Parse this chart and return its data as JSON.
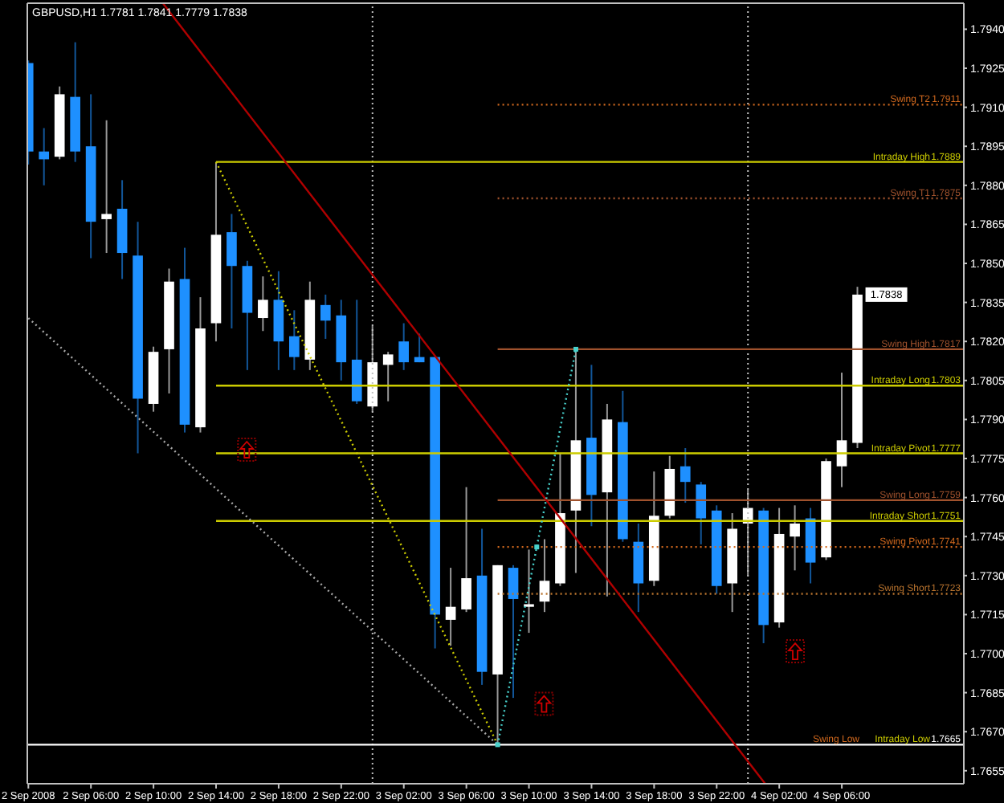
{
  "chart_data": {
    "type": "candlestick",
    "title": "GBPUSD,H1 1.7781 1.7841 1.7779 1.7838",
    "x": [
      "2008-09-02T02:00",
      "2008-09-02T03:00",
      "2008-09-02T04:00",
      "2008-09-02T05:00",
      "2008-09-02T06:00",
      "2008-09-02T07:00",
      "2008-09-02T08:00",
      "2008-09-02T09:00",
      "2008-09-02T10:00",
      "2008-09-02T11:00",
      "2008-09-02T12:00",
      "2008-09-02T13:00",
      "2008-09-02T14:00",
      "2008-09-02T15:00",
      "2008-09-02T16:00",
      "2008-09-02T17:00",
      "2008-09-02T18:00",
      "2008-09-02T19:00",
      "2008-09-02T20:00",
      "2008-09-02T21:00",
      "2008-09-02T22:00",
      "2008-09-02T23:00",
      "2008-09-03T00:00",
      "2008-09-03T01:00",
      "2008-09-03T02:00",
      "2008-09-03T03:00",
      "2008-09-03T04:00",
      "2008-09-03T05:00",
      "2008-09-03T06:00",
      "2008-09-03T07:00",
      "2008-09-03T08:00",
      "2008-09-03T09:00",
      "2008-09-03T10:00",
      "2008-09-03T11:00",
      "2008-09-03T12:00",
      "2008-09-03T13:00",
      "2008-09-03T14:00",
      "2008-09-03T15:00",
      "2008-09-03T16:00",
      "2008-09-03T17:00",
      "2008-09-03T18:00",
      "2008-09-03T19:00",
      "2008-09-03T20:00",
      "2008-09-03T21:00",
      "2008-09-03T22:00",
      "2008-09-03T23:00",
      "2008-09-04T00:00",
      "2008-09-04T01:00",
      "2008-09-04T02:00",
      "2008-09-04T03:00",
      "2008-09-04T04:00",
      "2008-09-04T05:00",
      "2008-09-04T06:00",
      "2008-09-04T07:00"
    ],
    "ohlc": [
      [
        1.7927,
        1.7928,
        1.7888,
        1.7893
      ],
      [
        1.7893,
        1.7902,
        1.788,
        1.789
      ],
      [
        1.7891,
        1.7918,
        1.789,
        1.7915
      ],
      [
        1.7914,
        1.7935,
        1.7889,
        1.7893
      ],
      [
        1.7895,
        1.7915,
        1.7852,
        1.7866
      ],
      [
        1.7867,
        1.7905,
        1.7854,
        1.7869
      ],
      [
        1.7871,
        1.7882,
        1.7844,
        1.7854
      ],
      [
        1.7853,
        1.7866,
        1.7777,
        1.7798
      ],
      [
        1.7796,
        1.7818,
        1.7793,
        1.7816
      ],
      [
        1.7817,
        1.7848,
        1.78,
        1.7843
      ],
      [
        1.7844,
        1.7856,
        1.7785,
        1.7788
      ],
      [
        1.7787,
        1.7837,
        1.7785,
        1.7825
      ],
      [
        1.7827,
        1.7889,
        1.782,
        1.7861
      ],
      [
        1.7862,
        1.7869,
        1.7825,
        1.7849
      ],
      [
        1.7849,
        1.7851,
        1.7809,
        1.7831
      ],
      [
        1.7829,
        1.7845,
        1.7824,
        1.7836
      ],
      [
        1.7836,
        1.7847,
        1.7809,
        1.782
      ],
      [
        1.7822,
        1.7832,
        1.7809,
        1.7814
      ],
      [
        1.7813,
        1.7843,
        1.7809,
        1.7836
      ],
      [
        1.7834,
        1.7838,
        1.7821,
        1.7828
      ],
      [
        1.783,
        1.7836,
        1.7805,
        1.7812
      ],
      [
        1.7813,
        1.7836,
        1.7796,
        1.7797
      ],
      [
        1.7795,
        1.7826,
        1.7793,
        1.7812
      ],
      [
        1.7811,
        1.7816,
        1.7797,
        1.7815
      ],
      [
        1.782,
        1.7827,
        1.7809,
        1.7812
      ],
      [
        1.7814,
        1.7823,
        1.7812,
        1.7812
      ],
      [
        1.7814,
        1.7814,
        1.7702,
        1.7715
      ],
      [
        1.7713,
        1.7733,
        1.7703,
        1.7718
      ],
      [
        1.7717,
        1.7764,
        1.7716,
        1.7729
      ],
      [
        1.773,
        1.7748,
        1.7688,
        1.7693
      ],
      [
        1.7692,
        1.7734,
        1.7665,
        1.7734
      ],
      [
        1.7733,
        1.7734,
        1.7683,
        1.7721
      ],
      [
        1.7718,
        1.774,
        1.7708,
        1.7719
      ],
      [
        1.772,
        1.7744,
        1.7716,
        1.7728
      ],
      [
        1.7727,
        1.7777,
        1.7726,
        1.7754
      ],
      [
        1.7755,
        1.7817,
        1.7731,
        1.7782
      ],
      [
        1.7783,
        1.7811,
        1.7749,
        1.7761
      ],
      [
        1.7762,
        1.7796,
        1.7722,
        1.779
      ],
      [
        1.7789,
        1.7801,
        1.7743,
        1.7744
      ],
      [
        1.7743,
        1.775,
        1.7716,
        1.7727
      ],
      [
        1.7728,
        1.777,
        1.7726,
        1.7753
      ],
      [
        1.7753,
        1.7776,
        1.7752,
        1.7771
      ],
      [
        1.7772,
        1.7779,
        1.7758,
        1.7766
      ],
      [
        1.7765,
        1.7766,
        1.7742,
        1.7752
      ],
      [
        1.7755,
        1.7757,
        1.7723,
        1.7726
      ],
      [
        1.7727,
        1.7754,
        1.7716,
        1.7748
      ],
      [
        1.775,
        1.7763,
        1.773,
        1.7756
      ],
      [
        1.7755,
        1.7756,
        1.7704,
        1.7711
      ],
      [
        1.7712,
        1.7756,
        1.771,
        1.7746
      ],
      [
        1.7745,
        1.7757,
        1.7732,
        1.775
      ],
      [
        1.7752,
        1.7756,
        1.7727,
        1.7735
      ],
      [
        1.7737,
        1.7775,
        1.7736,
        1.7774
      ],
      [
        1.7772,
        1.7808,
        1.7764,
        1.7782
      ],
      [
        1.7781,
        1.7841,
        1.7779,
        1.7838
      ]
    ],
    "colors": [
      "#1e90ff",
      "#1e90ff",
      "#ffffff",
      "#1e90ff",
      "#1e90ff",
      "#ffffff",
      "#1e90ff",
      "#1e90ff",
      "#ffffff",
      "#ffffff",
      "#1e90ff",
      "#ffffff",
      "#ffffff",
      "#1e90ff",
      "#1e90ff",
      "#ffffff",
      "#1e90ff",
      "#1e90ff",
      "#ffffff",
      "#1e90ff",
      "#1e90ff",
      "#1e90ff",
      "#ffffff",
      "#ffffff",
      "#1e90ff",
      "#1e90ff",
      "#1e90ff",
      "#ffffff",
      "#ffffff",
      "#1e90ff",
      "#ffffff",
      "#1e90ff",
      "#ffffff",
      "#ffffff",
      "#ffffff",
      "#ffffff",
      "#1e90ff",
      "#ffffff",
      "#1e90ff",
      "#1e90ff",
      "#ffffff",
      "#ffffff",
      "#1e90ff",
      "#1e90ff",
      "#1e90ff",
      "#ffffff",
      "#ffffff",
      "#1e90ff",
      "#ffffff",
      "#ffffff",
      "#1e90ff",
      "#ffffff",
      "#ffffff",
      "#ffffff"
    ],
    "xlim": [
      "2008-09-02T01:56",
      "2008-09-04T13:48"
    ],
    "xticks": [
      {
        "value": "2008-09-02T02:00",
        "label": "2 Sep 2008"
      },
      {
        "value": "2008-09-02T06:00",
        "label": "2 Sep 06:00"
      },
      {
        "value": "2008-09-02T10:00",
        "label": "2 Sep 10:00"
      },
      {
        "value": "2008-09-02T14:00",
        "label": "2 Sep 14:00"
      },
      {
        "value": "2008-09-02T18:00",
        "label": "2 Sep 18:00"
      },
      {
        "value": "2008-09-02T22:00",
        "label": "2 Sep 22:00"
      },
      {
        "value": "2008-09-03T02:00",
        "label": "3 Sep 02:00"
      },
      {
        "value": "2008-09-03T06:00",
        "label": "3 Sep 06:00"
      },
      {
        "value": "2008-09-03T10:00",
        "label": "3 Sep 10:00"
      },
      {
        "value": "2008-09-03T14:00",
        "label": "3 Sep 14:00"
      },
      {
        "value": "2008-09-03T18:00",
        "label": "3 Sep 18:00"
      },
      {
        "value": "2008-09-03T22:00",
        "label": "3 Sep 22:00"
      },
      {
        "value": "2008-09-04T02:00",
        "label": "4 Sep 02:00"
      },
      {
        "value": "2008-09-04T06:00",
        "label": "4 Sep 06:00"
      }
    ],
    "ylim": [
      1.765,
      1.795
    ],
    "yticks": [
      1.7655,
      {
        "value": 1.767,
        "label": "1.7670"
      },
      1.7685,
      {
        "value": 1.77,
        "label": "1.7700"
      },
      1.7715,
      {
        "value": 1.773,
        "label": "1.7730"
      },
      1.7745,
      {
        "value": 1.776,
        "label": "1.7760"
      },
      1.7775,
      {
        "value": 1.779,
        "label": "1.7790"
      },
      1.7805,
      {
        "value": 1.782,
        "label": "1.7820"
      },
      1.7835,
      {
        "value": 1.785,
        "label": "1.7850"
      },
      1.7865,
      {
        "value": 1.788,
        "label": "1.7880"
      },
      1.7895,
      {
        "value": 1.791,
        "label": "1.7910"
      },
      1.7925,
      {
        "value": 1.794,
        "label": "1.7940"
      }
    ],
    "grid": false,
    "legend": false,
    "series": [
      {
        "type": "line",
        "name": "Swing T2",
        "color": "#d2691e",
        "line_style": "dotted",
        "x": [
          "2008-09-03T08:00",
          "2008-09-04T13:48"
        ],
        "values": [
          1.7911,
          1.7911
        ],
        "value_labels": [
          null,
          "1.7911"
        ]
      },
      {
        "type": "line",
        "name": "Intraday High",
        "color": "#cccc00",
        "line_style": "solid",
        "x": [
          "2008-09-02T14:00",
          "2008-09-04T13:48"
        ],
        "values": [
          1.7889,
          1.7889
        ],
        "value_labels": [
          null,
          "1.7889"
        ]
      },
      {
        "type": "line",
        "name": "Swing T1",
        "color": "#a0522d",
        "line_style": "dotted",
        "x": [
          "2008-09-03T08:00",
          "2008-09-04T13:48"
        ],
        "values": [
          1.7875,
          1.7875
        ],
        "value_labels": [
          null,
          "1.7875"
        ]
      },
      {
        "type": "line",
        "name": "Swing High",
        "color": "#a0522d",
        "line_style": "solid",
        "x": [
          "2008-09-03T08:00",
          "2008-09-04T13:48"
        ],
        "values": [
          1.7817,
          1.7817
        ],
        "value_labels": [
          null,
          "1.7817"
        ]
      },
      {
        "type": "line",
        "name": "Intraday Long",
        "color": "#cccc00",
        "line_style": "solid",
        "x": [
          "2008-09-02T14:00",
          "2008-09-04T13:48"
        ],
        "values": [
          1.7803,
          1.7803
        ],
        "value_labels": [
          null,
          "1.7803"
        ]
      },
      {
        "type": "line",
        "name": "Intraday Pivot",
        "color": "#cccc00",
        "line_style": "solid",
        "x": [
          "2008-09-02T14:00",
          "2008-09-04T13:48"
        ],
        "values": [
          1.7777,
          1.7777
        ],
        "value_labels": [
          null,
          "1.7777"
        ]
      },
      {
        "type": "line",
        "name": "Swing Long",
        "color": "#a0522d",
        "line_style": "solid",
        "x": [
          "2008-09-03T08:00",
          "2008-09-04T13:48"
        ],
        "values": [
          1.7759,
          1.7759
        ],
        "value_labels": [
          null,
          "1.7759"
        ]
      },
      {
        "type": "line",
        "name": "Intraday Short",
        "color": "#cccc00",
        "line_style": "solid",
        "x": [
          "2008-09-02T14:00",
          "2008-09-04T13:48"
        ],
        "values": [
          1.7751,
          1.7751
        ],
        "value_labels": [
          null,
          "1.7751"
        ]
      },
      {
        "type": "line",
        "name": "Swing Pivot",
        "color": "#d2691e",
        "line_style": "dotted",
        "x": [
          "2008-09-03T08:00",
          "2008-09-04T13:48"
        ],
        "values": [
          1.7741,
          1.7741
        ],
        "value_labels": [
          null,
          "1.7741"
        ]
      },
      {
        "type": "line",
        "name": "Swing Short",
        "color": "#b8732e",
        "line_style": "dotted",
        "x": [
          "2008-09-03T08:00",
          "2008-09-04T13:48"
        ],
        "values": [
          1.7723,
          1.7723
        ],
        "value_labels": [
          null,
          "1.7723"
        ]
      },
      {
        "type": "line",
        "color": "#ffffff",
        "line_style": "solid",
        "x": [
          "2008-09-02T01:56",
          "2008-09-04T13:48"
        ],
        "values": [
          1.7665,
          1.7665
        ],
        "value_labels": [
          null,
          "1.7665"
        ]
      },
      {
        "type": "line",
        "color": "#b00000",
        "line_style": "solid",
        "x": [
          "2008-09-02T10:36",
          "2008-09-04T01:06"
        ],
        "values": [
          1.795,
          1.765
        ]
      },
      {
        "type": "line",
        "color": "#cccc00",
        "line_style": "dotted",
        "x": [
          "2008-09-02T14:00",
          "2008-09-03T08:00"
        ],
        "values": [
          1.7889,
          1.7665
        ]
      },
      {
        "type": "line",
        "color": "#a9a9a9",
        "line_style": "dotted",
        "x": [
          "2008-09-02T02:00",
          "2008-09-03T08:00"
        ],
        "values": [
          1.7829,
          1.7665
        ]
      },
      {
        "type": "line",
        "color": "#48d1cc",
        "line_style": "dotted",
        "marker": "square",
        "x": [
          "2008-09-03T08:00",
          "2008-09-03T10:30",
          "2008-09-03T13:00"
        ],
        "values": [
          1.7665,
          1.7741,
          1.7817
        ]
      }
    ],
    "ref_lines": [
      {
        "axis": "x",
        "value": "2008-09-03T00:00",
        "color": "#c0c0c0",
        "line_style": "dotted"
      },
      {
        "axis": "x",
        "value": "2008-09-04T00:00",
        "color": "#c0c0c0",
        "line_style": "dotted"
      }
    ],
    "annotations": [
      {
        "text": "1.7838",
        "x": "2008-09-04T07:00",
        "y": 1.7838
      },
      {
        "text": "Intraday Low",
        "y": 1.7665
      },
      {
        "text": "Swing Low",
        "y": 1.7665
      }
    ]
  }
}
